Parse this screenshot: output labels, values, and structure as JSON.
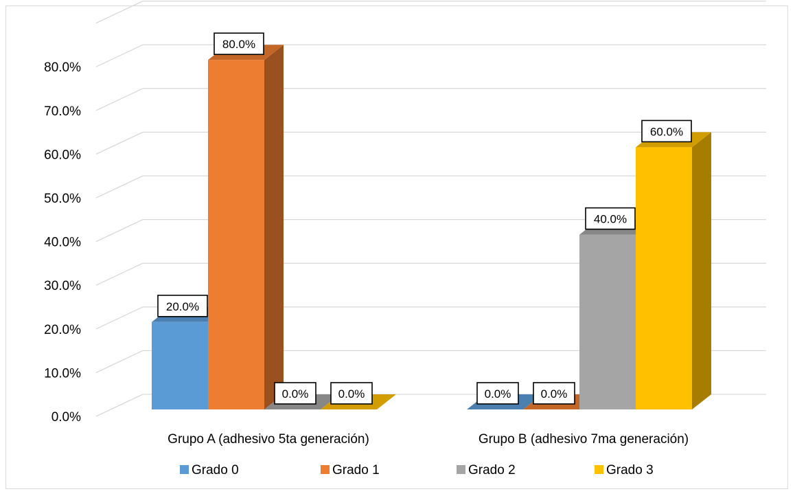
{
  "chart_data": {
    "type": "bar",
    "three_d": true,
    "categories": [
      "Grupo A (adhesivo 5ta generación)",
      "Grupo B (adhesivo 7ma generación)"
    ],
    "series": [
      {
        "name": "Grado 0",
        "values": [
          20.0,
          0.0
        ],
        "labels": [
          "20.0%",
          "0.0%"
        ],
        "color": "#5b9bd5"
      },
      {
        "name": "Grado 1",
        "values": [
          80.0,
          0.0
        ],
        "labels": [
          "80.0%",
          "0.0%"
        ],
        "color": "#ed7d31"
      },
      {
        "name": "Grado 2",
        "values": [
          0.0,
          40.0
        ],
        "labels": [
          "0.0%",
          "40.0%"
        ],
        "color": "#a5a5a5"
      },
      {
        "name": "Grado 3",
        "values": [
          0.0,
          60.0
        ],
        "labels": [
          "0.0%",
          "60.0%"
        ],
        "color": "#ffc000"
      }
    ],
    "y_ticks": [
      "0.0%",
      "10.0%",
      "20.0%",
      "30.0%",
      "40.0%",
      "50.0%",
      "60.0%",
      "70.0%",
      "80.0%"
    ],
    "ylim": [
      0,
      80
    ],
    "grid": true,
    "legend_position": "bottom"
  }
}
